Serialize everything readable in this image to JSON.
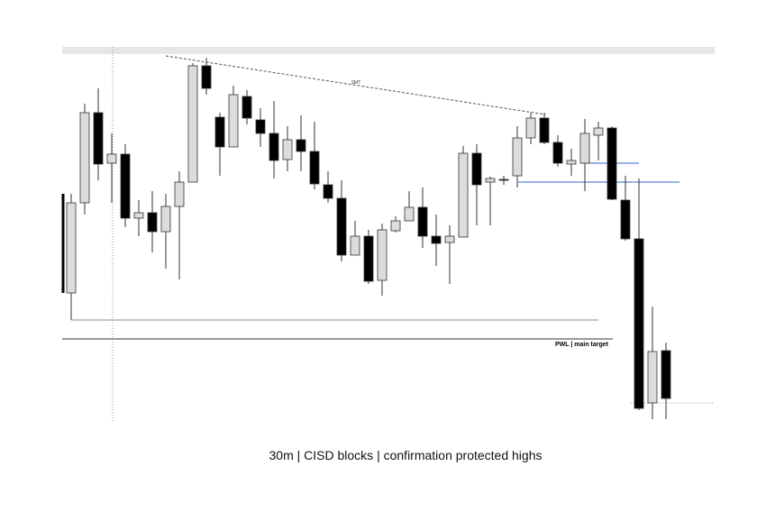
{
  "chart_data": {
    "type": "candlestick",
    "caption": "30m | CISD blocks  | confirmation protected highs",
    "annotations": [
      "SMT",
      "PWL  |  main target"
    ],
    "ylim": [
      0,
      420
    ],
    "up_color": "#dcdcdc",
    "down_color": "#000000",
    "open": [
      155,
      255,
      355,
      299,
      309,
      238,
      244,
      223,
      251,
      278,
      407,
      350,
      317,
      373,
      347,
      332,
      303,
      325,
      312,
      275,
      260,
      197,
      218,
      169,
      224,
      235,
      250,
      218,
      211,
      217,
      310,
      278,
      281,
      285,
      327,
      349,
      322,
      298,
      299,
      330,
      338,
      258,
      215,
      33,
      91
    ],
    "high": [
      265,
      365,
      382,
      332,
      320,
      258,
      268,
      265,
      290,
      410,
      416,
      355,
      385,
      380,
      360,
      368,
      340,
      352,
      345,
      290,
      280,
      235,
      225,
      232,
      240,
      268,
      272,
      242,
      230,
      318,
      320,
      284,
      285,
      340,
      355,
      355,
      330,
      315,
      348,
      345,
      340,
      285,
      282,
      140,
      100
    ],
    "low": [
      125,
      242,
      280,
      255,
      228,
      218,
      200,
      182,
      170,
      278,
      375,
      285,
      317,
      342,
      317,
      282,
      290,
      290,
      270,
      255,
      190,
      197,
      165,
      152,
      222,
      235,
      205,
      185,
      165,
      217,
      230,
      230,
      275,
      272,
      320,
      320,
      295,
      285,
      268,
      302,
      258,
      213,
      25,
      15,
      15
    ],
    "close": [
      255,
      355,
      298,
      309,
      238,
      244,
      223,
      251,
      278,
      407,
      382,
      317,
      375,
      349,
      332,
      302,
      325,
      312,
      276,
      260,
      197,
      218,
      168,
      225,
      235,
      250,
      218,
      210,
      218,
      310,
      275,
      282,
      280,
      327,
      349,
      322,
      299,
      302,
      332,
      338,
      259,
      215,
      27,
      90,
      38
    ]
  }
}
